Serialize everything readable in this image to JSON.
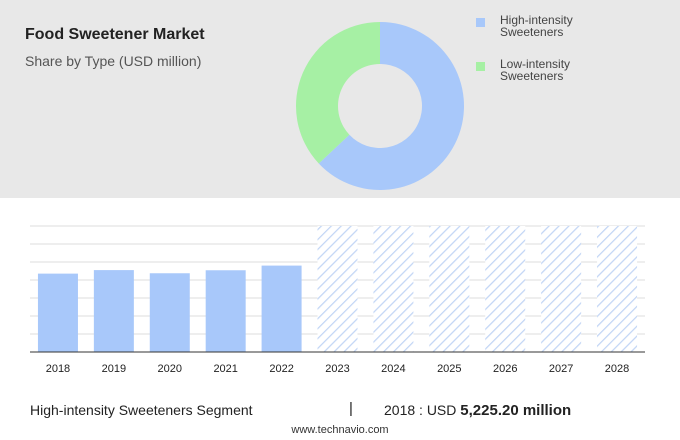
{
  "title": "Food Sweetener Market",
  "subtitle": "Share by Type (USD million)",
  "colors": {
    "high": "#a8c8fa",
    "low": "#a6f0a4",
    "forecast": "#c2d5f5",
    "grid": "#dddddd"
  },
  "chart_data": [
    {
      "type": "pie",
      "subtype": "donut",
      "categories": [
        "High-intensity Sweeteners",
        "Low-intensity Sweeteners"
      ],
      "values": [
        63,
        37
      ],
      "legend_position": "right"
    },
    {
      "type": "bar",
      "categories": [
        "2018",
        "2019",
        "2020",
        "2021",
        "2022",
        "2023",
        "2024",
        "2025",
        "2026",
        "2027",
        "2028"
      ],
      "values": [
        5225.2,
        5460,
        5250,
        5450,
        5760,
        null,
        null,
        null,
        null,
        null,
        null
      ],
      "forecast_categories": [
        "2023",
        "2024",
        "2025",
        "2026",
        "2027",
        "2028"
      ],
      "ylim": [
        0,
        8400
      ],
      "grid": true
    }
  ],
  "footer": {
    "segment": "High-intensity Sweeteners Segment",
    "separator": "|",
    "year": "2018",
    "label": " : USD ",
    "value": "5,225.20 million"
  },
  "source": "www.technavio.com"
}
